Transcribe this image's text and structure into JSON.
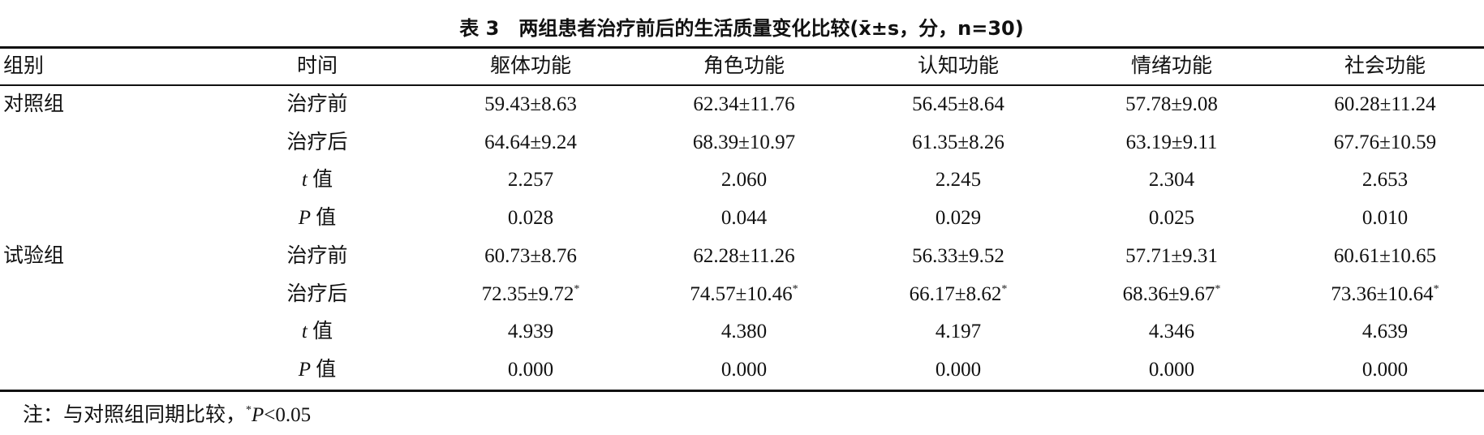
{
  "title": "表 3　两组患者治疗前后的生活质量变化比较(x̄±s，分，n=30)",
  "table": {
    "header": [
      "组别",
      "时间",
      "躯体功能",
      "角色功能",
      "认知功能",
      "情绪功能",
      "社会功能"
    ],
    "rows": [
      {
        "group": "对照组",
        "time": {
          "text": "治疗前"
        },
        "cells": [
          "59.43±8.63",
          "62.34±11.76",
          "56.45±8.64",
          "57.78±9.08",
          "60.28±11.24"
        ]
      },
      {
        "time": {
          "text": "治疗后"
        },
        "cells": [
          "64.64±9.24",
          "68.39±10.97",
          "61.35±8.26",
          "63.19±9.11",
          "67.76±10.59"
        ]
      },
      {
        "time": {
          "var": "t",
          "text": "值"
        },
        "cells": [
          "2.257",
          "2.060",
          "2.245",
          "2.304",
          "2.653"
        ]
      },
      {
        "time": {
          "var": "P",
          "text": "值"
        },
        "cells": [
          "0.028",
          "0.044",
          "0.029",
          "0.025",
          "0.010"
        ]
      },
      {
        "group": "试验组",
        "time": {
          "text": "治疗前"
        },
        "cells": [
          "60.73±8.76",
          "62.28±11.26",
          "56.33±9.52",
          "57.71±9.31",
          "60.61±10.65"
        ]
      },
      {
        "time": {
          "text": "治疗后"
        },
        "cells": [
          {
            "text": "72.35±9.72",
            "sup": "*"
          },
          {
            "text": "74.57±10.46",
            "sup": "*"
          },
          {
            "text": "66.17±8.62",
            "sup": "*"
          },
          {
            "text": "68.36±9.67",
            "sup": "*"
          },
          {
            "text": "73.36±10.64",
            "sup": "*"
          }
        ]
      },
      {
        "time": {
          "var": "t",
          "text": "值"
        },
        "cells": [
          "4.939",
          "4.380",
          "4.197",
          "4.346",
          "4.639"
        ]
      },
      {
        "time": {
          "var": "P",
          "text": "值"
        },
        "cells": [
          "0.000",
          "0.000",
          "0.000",
          "0.000",
          "0.000"
        ]
      }
    ]
  },
  "note": {
    "text": "注：与对照组同期比较，",
    "sup": "*",
    "var": "P",
    "rest": "<0.05"
  }
}
